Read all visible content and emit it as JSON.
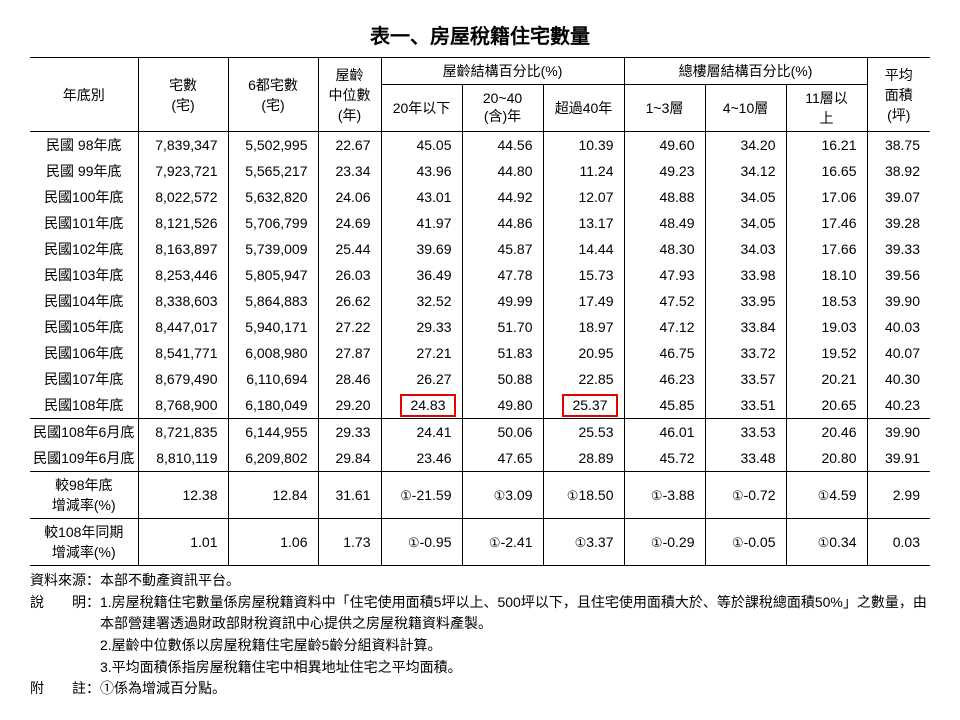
{
  "title": "表一、房屋稅籍住宅數量",
  "header": {
    "year": "年底別",
    "houses": "宅數\n(宅)",
    "sixCities": "6都宅數\n(宅)",
    "medianAge": "屋齡\n中位數\n(年)",
    "ageGroup": "屋齡結構百分比(%)",
    "age1": "20年以下",
    "age2": "20~40\n(含)年",
    "age3": "超過40年",
    "floorGroup": "總樓層結構百分比(%)",
    "floor1": "1~3層",
    "floor2": "4~10層",
    "floor3": "11層以\n上",
    "area": "平均\n面積\n(坪)"
  },
  "rows": [
    {
      "y": "民國 98年底",
      "a": "7,839,347",
      "b": "5,502,995",
      "c": "22.67",
      "d": "45.05",
      "e": "44.56",
      "f": "10.39",
      "g": "49.60",
      "h": "34.20",
      "i": "16.21",
      "j": "38.75"
    },
    {
      "y": "民國 99年底",
      "a": "7,923,721",
      "b": "5,565,217",
      "c": "23.34",
      "d": "43.96",
      "e": "44.80",
      "f": "11.24",
      "g": "49.23",
      "h": "34.12",
      "i": "16.65",
      "j": "38.92"
    },
    {
      "y": "民國100年底",
      "a": "8,022,572",
      "b": "5,632,820",
      "c": "24.06",
      "d": "43.01",
      "e": "44.92",
      "f": "12.07",
      "g": "48.88",
      "h": "34.05",
      "i": "17.06",
      "j": "39.07"
    },
    {
      "y": "民國101年底",
      "a": "8,121,526",
      "b": "5,706,799",
      "c": "24.69",
      "d": "41.97",
      "e": "44.86",
      "f": "13.17",
      "g": "48.49",
      "h": "34.05",
      "i": "17.46",
      "j": "39.28"
    },
    {
      "y": "民國102年底",
      "a": "8,163,897",
      "b": "5,739,009",
      "c": "25.44",
      "d": "39.69",
      "e": "45.87",
      "f": "14.44",
      "g": "48.30",
      "h": "34.03",
      "i": "17.66",
      "j": "39.33"
    },
    {
      "y": "民國103年底",
      "a": "8,253,446",
      "b": "5,805,947",
      "c": "26.03",
      "d": "36.49",
      "e": "47.78",
      "f": "15.73",
      "g": "47.93",
      "h": "33.98",
      "i": "18.10",
      "j": "39.56"
    },
    {
      "y": "民國104年底",
      "a": "8,338,603",
      "b": "5,864,883",
      "c": "26.62",
      "d": "32.52",
      "e": "49.99",
      "f": "17.49",
      "g": "47.52",
      "h": "33.95",
      "i": "18.53",
      "j": "39.90"
    },
    {
      "y": "民國105年底",
      "a": "8,447,017",
      "b": "5,940,171",
      "c": "27.22",
      "d": "29.33",
      "e": "51.70",
      "f": "18.97",
      "g": "47.12",
      "h": "33.84",
      "i": "19.03",
      "j": "40.03"
    },
    {
      "y": "民國106年底",
      "a": "8,541,771",
      "b": "6,008,980",
      "c": "27.87",
      "d": "27.21",
      "e": "51.83",
      "f": "20.95",
      "g": "46.75",
      "h": "33.72",
      "i": "19.52",
      "j": "40.07"
    },
    {
      "y": "民國107年底",
      "a": "8,679,490",
      "b": "6,110,694",
      "c": "28.46",
      "d": "26.27",
      "e": "50.88",
      "f": "22.85",
      "g": "46.23",
      "h": "33.57",
      "i": "20.21",
      "j": "40.30"
    },
    {
      "y": "民國108年底",
      "a": "8,768,900",
      "b": "6,180,049",
      "c": "29.20",
      "d": "24.83",
      "e": "49.80",
      "f": "25.37",
      "g": "45.85",
      "h": "33.51",
      "i": "20.65",
      "j": "40.23",
      "hl_d": true,
      "hl_f": true,
      "divider": true
    },
    {
      "y": "民國108年6月底",
      "a": "8,721,835",
      "b": "6,144,955",
      "c": "29.33",
      "d": "24.41",
      "e": "50.06",
      "f": "25.53",
      "g": "46.01",
      "h": "33.53",
      "i": "20.46",
      "j": "39.90"
    },
    {
      "y": "民國109年6月底",
      "a": "8,810,119",
      "b": "6,209,802",
      "c": "29.84",
      "d": "23.46",
      "e": "47.65",
      "f": "28.89",
      "g": "45.72",
      "h": "33.48",
      "i": "20.80",
      "j": "39.91",
      "divider": true
    }
  ],
  "summary": [
    {
      "y": "較98年底\n增減率(%)",
      "a": "12.38",
      "b": "12.84",
      "c": "31.61",
      "d": "①-21.59",
      "e": "①3.09",
      "f": "①18.50",
      "g": "①-3.88",
      "h": "①-0.72",
      "i": "①4.59",
      "j": "2.99",
      "divider": true
    },
    {
      "y": "較108年同期\n增減率(%)",
      "a": "1.01",
      "b": "1.06",
      "c": "1.73",
      "d": "①-0.95",
      "e": "①-2.41",
      "f": "①3.37",
      "g": "①-0.29",
      "h": "①-0.05",
      "i": "①0.34",
      "j": "0.03"
    }
  ],
  "notes": {
    "sourceLabel": "資料來源：",
    "source": "本部不動產資訊平台。",
    "descLabel": "說　　明：",
    "desc1": "1.房屋稅籍住宅數量係房屋稅籍資料中「住宅使用面積5坪以上、500坪以下，且住宅使用面積大於、等於課稅總面積50%」之數量，由本部營建署透過財政部財稅資訊中心提供之房屋稅籍資料產製。",
    "desc2": "2.屋齡中位數係以房屋稅籍住宅屋齡5齡分組資料計算。",
    "desc3": "3.平均面積係指房屋稅籍住宅中相異地址住宅之平均面積。",
    "noteLabel": "附　　註：",
    "note1": "①係為增減百分點。"
  },
  "style": {
    "highlightColor": "#e60000",
    "textColor": "#000000",
    "bgColor": "#ffffff",
    "titleFontSize": 20,
    "bodyFontSize": 14
  }
}
